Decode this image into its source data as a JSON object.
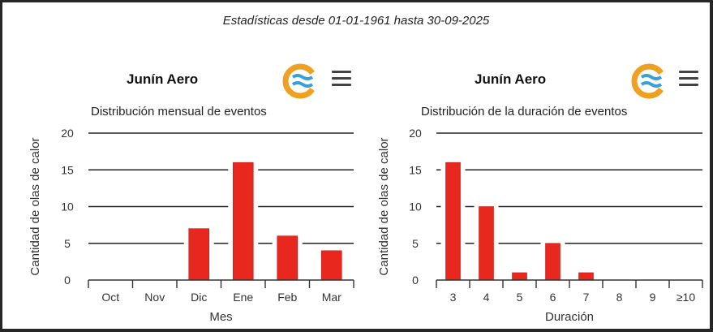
{
  "header": {
    "title": "Estadísticas desde 01-01-1961 hasta 30-09-2025"
  },
  "colors": {
    "bar": "#e8271f",
    "grid": "#222222",
    "logo_ring": "#f0a020",
    "logo_waves": "#3a9fd6"
  },
  "icons": {
    "logo": "smn-logo-icon",
    "menu": "hamburger-menu-icon"
  },
  "panels": [
    {
      "station": "Junín Aero",
      "subtitle": "Distribución mensual de eventos"
    },
    {
      "station": "Junín Aero",
      "subtitle": "Distribución de la duración de eventos"
    }
  ],
  "chart_data": [
    {
      "type": "bar",
      "title": "Distribución mensual de eventos",
      "xlabel": "Mes",
      "ylabel": "Cantidad de olas de calor",
      "categories": [
        "Oct",
        "Nov",
        "Dic",
        "Ene",
        "Feb",
        "Mar"
      ],
      "values": [
        0,
        0,
        7,
        16,
        6,
        4
      ],
      "ylim": [
        0,
        20
      ],
      "yticks": [
        "0",
        "5",
        "10",
        "15",
        "20"
      ],
      "grid": true,
      "legend": "none"
    },
    {
      "type": "bar",
      "title": "Distribución de la duración de eventos",
      "xlabel": "Duración",
      "ylabel": "Cantidad de olas de calor",
      "categories": [
        "3",
        "4",
        "5",
        "6",
        "7",
        "8",
        "9",
        "≥10"
      ],
      "values": [
        16,
        10,
        1,
        5,
        1,
        0,
        0,
        0
      ],
      "ylim": [
        0,
        20
      ],
      "yticks": [
        "0",
        "5",
        "10",
        "15",
        "20"
      ],
      "grid": true,
      "legend": "none"
    }
  ]
}
